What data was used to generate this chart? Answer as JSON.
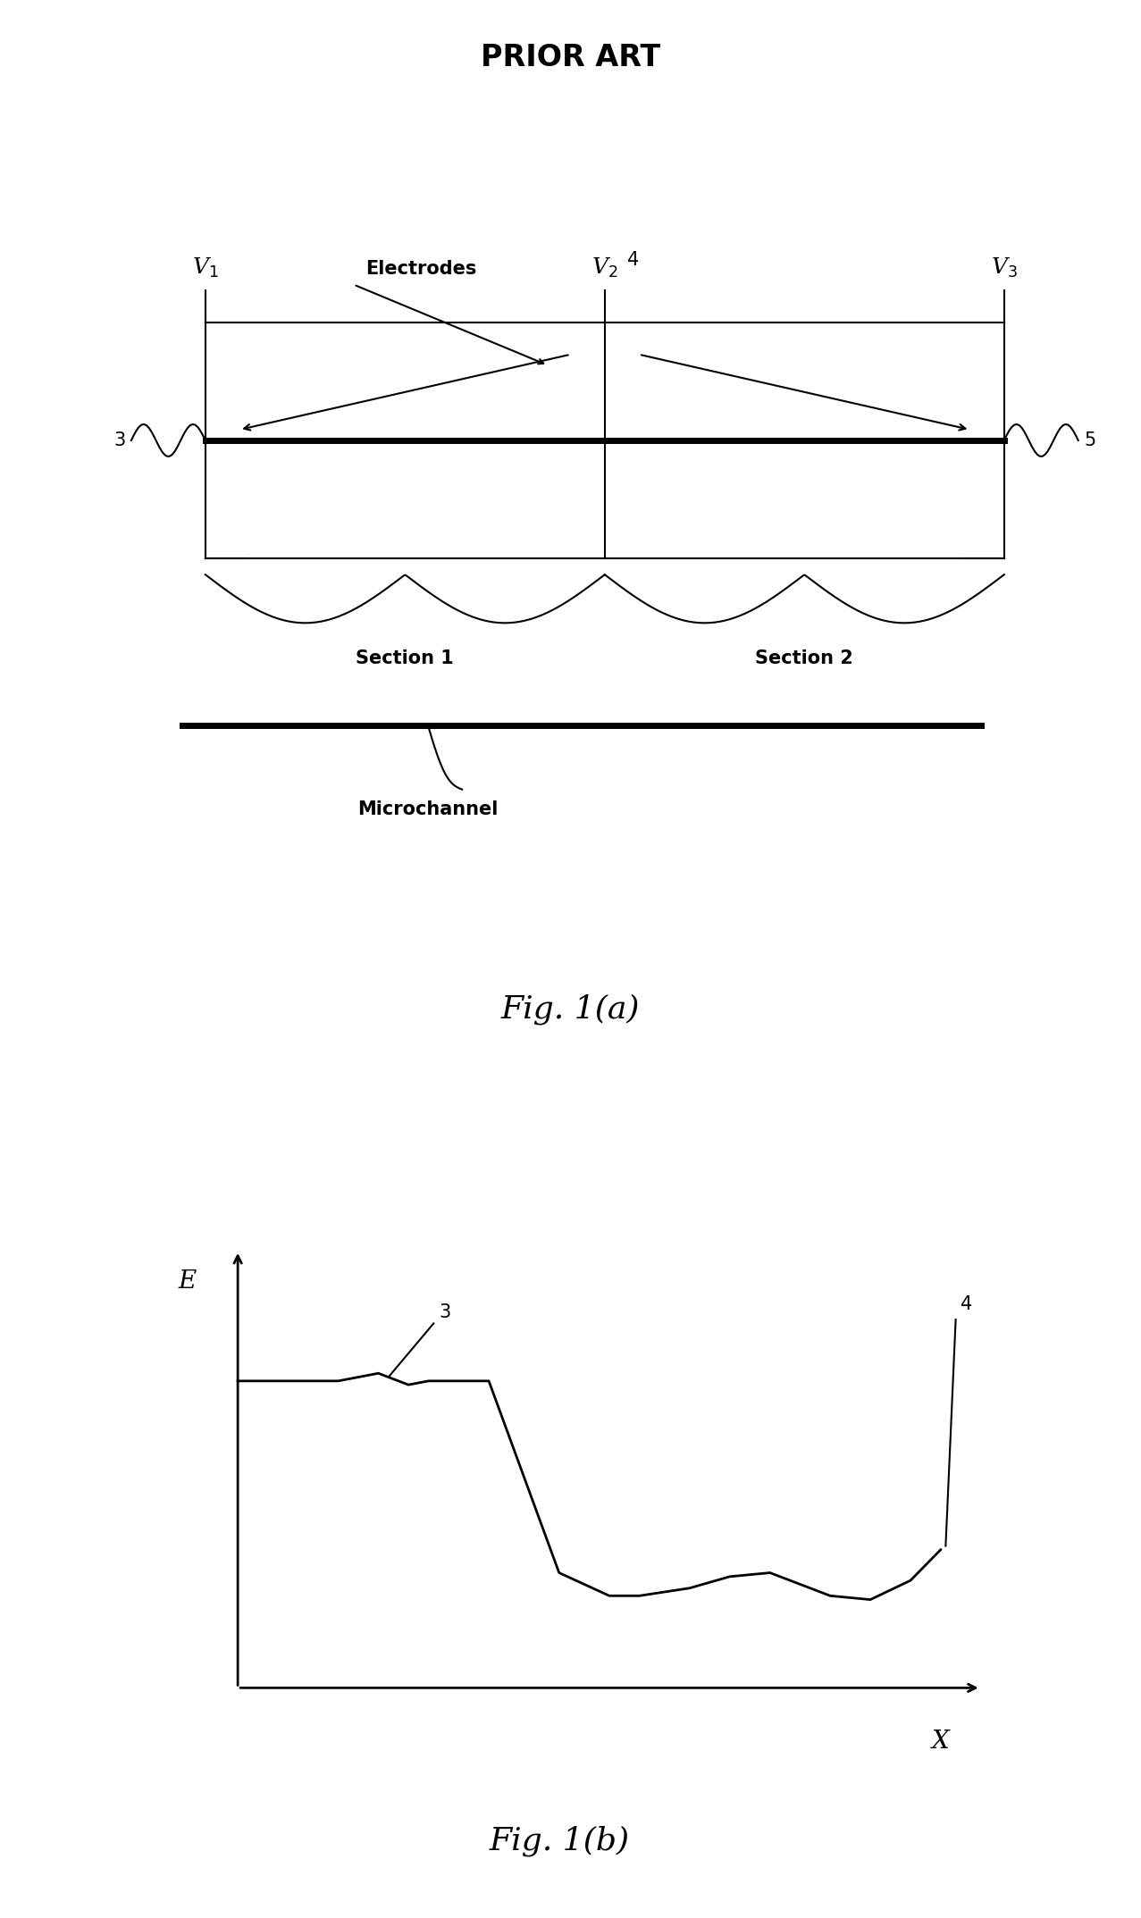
{
  "title": "PRIOR ART",
  "fig1a_label": "Fig. 1(a)",
  "fig1b_label": "Fig. 1(b)",
  "background_color": "#ffffff",
  "line_color": "#000000",
  "title_fontsize": 24,
  "label_fontsize": 18,
  "annotation_fontsize": 15,
  "fig_label_fontsize": 26,
  "v1_label": "V$_1$",
  "v2_label": "V$_2$",
  "v3_label": "V$_3$",
  "electrodes_label": "Electrodes",
  "section1_label": "Section 1",
  "section2_label": "Section 2",
  "microchannel_label": "Microchannel",
  "label_3_fig1a": "3",
  "label_4_fig1a": "4",
  "label_5_fig1a": "5",
  "label_3_fig1b": "3",
  "label_4_fig1b": "4",
  "E_label": "E",
  "X_label": "X"
}
